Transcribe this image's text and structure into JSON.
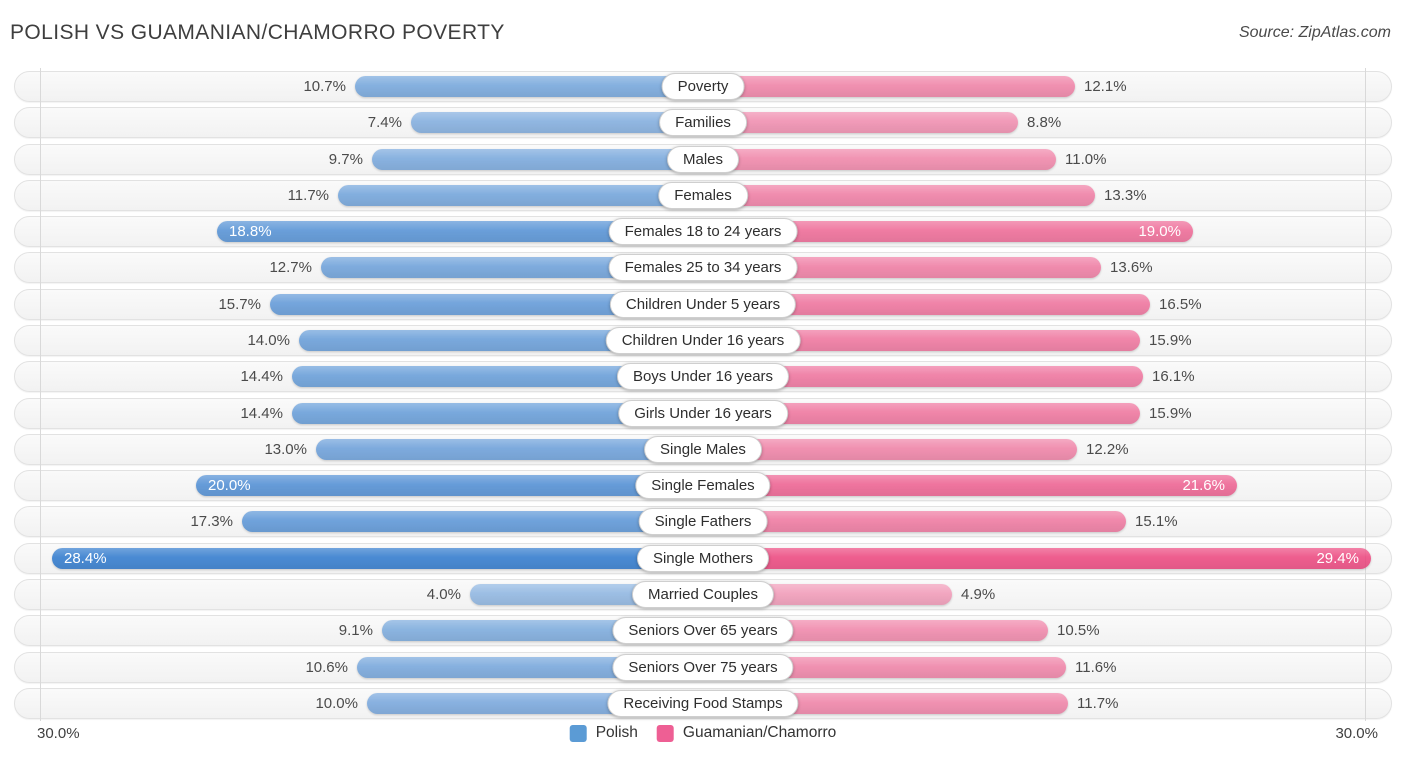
{
  "header": {
    "title": "POLISH VS GUAMANIAN/CHAMORRO POVERTY",
    "source": "Source: ZipAtlas.com"
  },
  "footer": {
    "axis_left": "30.0%",
    "axis_right": "30.0%"
  },
  "legend": [
    {
      "label": "Polish",
      "color": "#5b9bd5"
    },
    {
      "label": "Guamanian/Chamorro",
      "color": "#ee5f94"
    }
  ],
  "chart_data": {
    "type": "bar",
    "variant": "bidirectional-tornado",
    "title": "POLISH VS GUAMANIAN/CHAMORRO POVERTY",
    "xlabel": "",
    "ylabel": "",
    "axis_range_percent": [
      0,
      30
    ],
    "axis_tick_labels": [
      "30.0%",
      "30.0%"
    ],
    "legend_position": "bottom-center",
    "grid": "edge-verticals-only",
    "series_names": [
      "Polish",
      "Guamanian/Chamorro"
    ],
    "base_colors": {
      "polish": "#2473cb",
      "guamanian_chamorro": "#ec407a"
    },
    "value_suffix": "%",
    "rows": [
      {
        "label": "Poverty",
        "polish": 10.7,
        "guamanian_chamorro": 12.1
      },
      {
        "label": "Families",
        "polish": 7.4,
        "guamanian_chamorro": 8.8
      },
      {
        "label": "Males",
        "polish": 9.7,
        "guamanian_chamorro": 11.0
      },
      {
        "label": "Females",
        "polish": 11.7,
        "guamanian_chamorro": 13.3
      },
      {
        "label": "Females 18 to 24 years",
        "polish": 18.8,
        "guamanian_chamorro": 19.0
      },
      {
        "label": "Females 25 to 34 years",
        "polish": 12.7,
        "guamanian_chamorro": 13.6
      },
      {
        "label": "Children Under 5 years",
        "polish": 15.7,
        "guamanian_chamorro": 16.5
      },
      {
        "label": "Children Under 16 years",
        "polish": 14.0,
        "guamanian_chamorro": 15.9
      },
      {
        "label": "Boys Under 16 years",
        "polish": 14.4,
        "guamanian_chamorro": 16.1
      },
      {
        "label": "Girls Under 16 years",
        "polish": 14.4,
        "guamanian_chamorro": 15.9
      },
      {
        "label": "Single Males",
        "polish": 13.0,
        "guamanian_chamorro": 12.2
      },
      {
        "label": "Single Females",
        "polish": 20.0,
        "guamanian_chamorro": 21.6
      },
      {
        "label": "Single Fathers",
        "polish": 17.3,
        "guamanian_chamorro": 15.1
      },
      {
        "label": "Single Mothers",
        "polish": 28.4,
        "guamanian_chamorro": 29.4
      },
      {
        "label": "Married Couples",
        "polish": 4.0,
        "guamanian_chamorro": 4.9
      },
      {
        "label": "Seniors Over 65 years",
        "polish": 9.1,
        "guamanian_chamorro": 10.5
      },
      {
        "label": "Seniors Over 75 years",
        "polish": 10.6,
        "guamanian_chamorro": 11.6
      },
      {
        "label": "Receiving Food Stamps",
        "polish": 10.0,
        "guamanian_chamorro": 11.7
      }
    ]
  }
}
